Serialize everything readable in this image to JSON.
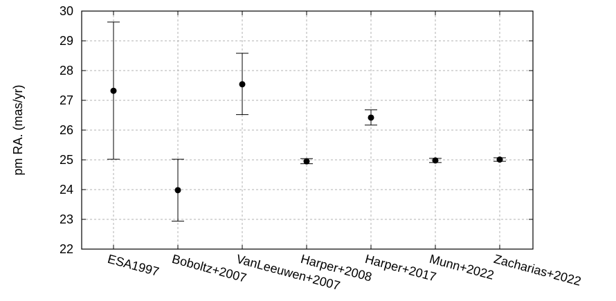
{
  "chart_data": {
    "type": "scatter",
    "title": "",
    "xlabel": "",
    "ylabel": "pm RA. (mas/yr)",
    "ylim": [
      22,
      30
    ],
    "yticks": [
      22,
      23,
      24,
      25,
      26,
      27,
      28,
      29,
      30
    ],
    "grid": true,
    "legend": "none",
    "categories": [
      "ESA1997",
      "Boboltz+2007",
      "VanLeeuwen+2007",
      "Harper+2008",
      "Harper+2017",
      "Munn+2022",
      "Zacharias+2022"
    ],
    "values": [
      27.32,
      23.98,
      27.54,
      24.95,
      26.42,
      24.98,
      25.01
    ],
    "err_low": [
      25.02,
      22.94,
      26.52,
      24.87,
      26.17,
      24.91,
      24.95
    ],
    "err_high": [
      29.63,
      25.02,
      28.58,
      25.04,
      26.68,
      25.05,
      25.07
    ],
    "colors": {
      "marker": "#000000",
      "grid": "#b0b0b0"
    }
  }
}
